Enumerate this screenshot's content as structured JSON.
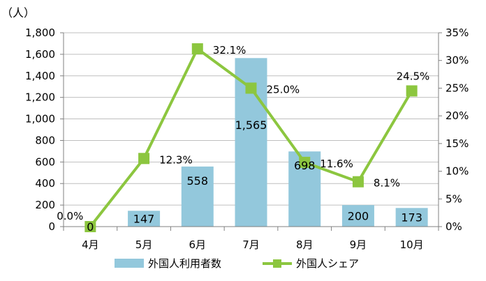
{
  "chart_data": {
    "type": "bar+line",
    "y_unit_label": "（人）",
    "categories": [
      "4月",
      "5月",
      "6月",
      "7月",
      "8月",
      "9月",
      "10月"
    ],
    "series": [
      {
        "name": "外国人利用者数",
        "type": "bar",
        "axis": "left",
        "color": "#93c8dc",
        "values": [
          0,
          147,
          558,
          1565,
          698,
          200,
          173
        ],
        "labels": [
          "0",
          "147",
          "558",
          "1,565",
          "698",
          "200",
          "173"
        ]
      },
      {
        "name": "外国人シェア",
        "type": "line",
        "axis": "right",
        "color": "#8cc63f",
        "marker": "square",
        "values": [
          0.0,
          12.3,
          32.1,
          25.0,
          11.6,
          8.1,
          24.5
        ],
        "labels": [
          "0.0%",
          "12.3%",
          "32.1%",
          "25.0%",
          "11.6%",
          "8.1%",
          "24.5%"
        ]
      }
    ],
    "y_left": {
      "range": [
        0,
        1800
      ],
      "ticks": [
        0,
        200,
        400,
        600,
        800,
        1000,
        1200,
        1400,
        1600,
        1800
      ],
      "tick_labels": [
        "0",
        "200",
        "400",
        "600",
        "800",
        "1,000",
        "1,200",
        "1,400",
        "1,600",
        "1,800"
      ]
    },
    "y_right": {
      "range": [
        0,
        35
      ],
      "ticks": [
        0,
        5,
        10,
        15,
        20,
        25,
        30,
        35
      ],
      "tick_labels": [
        "0%",
        "5%",
        "10%",
        "15%",
        "20%",
        "25%",
        "30%",
        "35%"
      ]
    },
    "grid": true,
    "legend_position": "bottom",
    "gridline_color": "#bfbfbf"
  }
}
